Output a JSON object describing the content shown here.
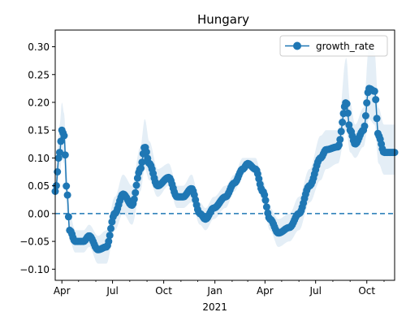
{
  "chart_data": {
    "type": "line",
    "title": "Hungary",
    "xlabel": "",
    "ylabel": "",
    "ylim": [
      -0.12,
      0.33
    ],
    "xlim": [
      "2020-03-20",
      "2021-11-20"
    ],
    "x_ticks": [
      {
        "date": "2020-04-01",
        "label": "Apr"
      },
      {
        "date": "2020-07-01",
        "label": "Jul"
      },
      {
        "date": "2020-10-01",
        "label": "Oct"
      },
      {
        "date": "2021-01-01",
        "label": "Jan"
      },
      {
        "date": "2021-04-01",
        "label": "Apr"
      },
      {
        "date": "2021-07-01",
        "label": "Jul"
      },
      {
        "date": "2021-10-01",
        "label": "Oct"
      }
    ],
    "x_year_label": "2021",
    "y_ticks": [
      -0.1,
      -0.05,
      0.0,
      0.05,
      0.1,
      0.15,
      0.2,
      0.25,
      0.3
    ],
    "y_tick_labels": [
      "−0.10",
      "−0.05",
      "0.00",
      "0.05",
      "0.10",
      "0.15",
      "0.20",
      "0.25",
      "0.30"
    ],
    "legend": {
      "position": "top-right"
    },
    "reference_line": {
      "y": 0.0,
      "style": "dashed"
    },
    "series": [
      {
        "name": "growth_rate",
        "color": "#1f77b4",
        "band_color": "#1f77b4",
        "marker": "circle",
        "points": [
          {
            "x": "2020-03-20",
            "y": 0.04,
            "lo": 0.03,
            "hi": 0.07
          },
          {
            "x": "2020-03-28",
            "y": 0.11,
            "lo": 0.07,
            "hi": 0.16
          },
          {
            "x": "2020-04-01",
            "y": 0.15,
            "lo": 0.1,
            "hi": 0.2
          },
          {
            "x": "2020-04-05",
            "y": 0.14,
            "lo": 0.09,
            "hi": 0.18
          },
          {
            "x": "2020-04-10",
            "y": 0.04,
            "lo": 0.0,
            "hi": 0.08
          },
          {
            "x": "2020-04-15",
            "y": -0.03,
            "lo": -0.05,
            "hi": 0.0
          },
          {
            "x": "2020-04-25",
            "y": -0.05,
            "lo": -0.07,
            "hi": -0.03
          },
          {
            "x": "2020-05-10",
            "y": -0.05,
            "lo": -0.07,
            "hi": -0.03
          },
          {
            "x": "2020-05-20",
            "y": -0.04,
            "lo": -0.06,
            "hi": -0.02
          },
          {
            "x": "2020-06-05",
            "y": -0.065,
            "lo": -0.09,
            "hi": -0.04
          },
          {
            "x": "2020-06-20",
            "y": -0.06,
            "lo": -0.09,
            "hi": -0.03
          },
          {
            "x": "2020-07-05",
            "y": 0.0,
            "lo": -0.03,
            "hi": 0.03
          },
          {
            "x": "2020-07-20",
            "y": 0.035,
            "lo": 0.0,
            "hi": 0.07
          },
          {
            "x": "2020-08-05",
            "y": 0.015,
            "lo": -0.02,
            "hi": 0.05
          },
          {
            "x": "2020-08-20",
            "y": 0.08,
            "lo": 0.04,
            "hi": 0.12
          },
          {
            "x": "2020-08-28",
            "y": 0.12,
            "lo": 0.08,
            "hi": 0.17
          },
          {
            "x": "2020-09-05",
            "y": 0.09,
            "lo": 0.06,
            "hi": 0.13
          },
          {
            "x": "2020-09-20",
            "y": 0.05,
            "lo": 0.03,
            "hi": 0.08
          },
          {
            "x": "2020-10-10",
            "y": 0.065,
            "lo": 0.05,
            "hi": 0.09
          },
          {
            "x": "2020-10-25",
            "y": 0.03,
            "lo": 0.01,
            "hi": 0.05
          },
          {
            "x": "2020-11-05",
            "y": 0.03,
            "lo": 0.01,
            "hi": 0.05
          },
          {
            "x": "2020-11-20",
            "y": 0.045,
            "lo": 0.02,
            "hi": 0.07
          },
          {
            "x": "2020-12-05",
            "y": 0.0,
            "lo": -0.02,
            "hi": 0.02
          },
          {
            "x": "2020-12-15",
            "y": -0.01,
            "lo": -0.03,
            "hi": 0.01
          },
          {
            "x": "2020-12-30",
            "y": 0.01,
            "lo": -0.01,
            "hi": 0.03
          },
          {
            "x": "2021-01-20",
            "y": 0.03,
            "lo": 0.01,
            "hi": 0.05
          },
          {
            "x": "2021-02-05",
            "y": 0.055,
            "lo": 0.04,
            "hi": 0.07
          },
          {
            "x": "2021-02-20",
            "y": 0.08,
            "lo": 0.07,
            "hi": 0.1
          },
          {
            "x": "2021-03-01",
            "y": 0.09,
            "lo": 0.08,
            "hi": 0.1
          },
          {
            "x": "2021-03-15",
            "y": 0.08,
            "lo": 0.07,
            "hi": 0.1
          },
          {
            "x": "2021-03-28",
            "y": 0.04,
            "lo": 0.02,
            "hi": 0.06
          },
          {
            "x": "2021-04-10",
            "y": -0.01,
            "lo": -0.03,
            "hi": 0.01
          },
          {
            "x": "2021-04-25",
            "y": -0.035,
            "lo": -0.06,
            "hi": -0.01
          },
          {
            "x": "2021-05-15",
            "y": -0.025,
            "lo": -0.05,
            "hi": 0.0
          },
          {
            "x": "2021-06-01",
            "y": 0.0,
            "lo": -0.03,
            "hi": 0.03
          },
          {
            "x": "2021-06-20",
            "y": 0.05,
            "lo": 0.02,
            "hi": 0.08
          },
          {
            "x": "2021-07-10",
            "y": 0.1,
            "lo": 0.06,
            "hi": 0.14
          },
          {
            "x": "2021-07-20",
            "y": 0.115,
            "lo": 0.08,
            "hi": 0.15
          },
          {
            "x": "2021-08-10",
            "y": 0.12,
            "lo": 0.09,
            "hi": 0.15
          },
          {
            "x": "2021-08-25",
            "y": 0.2,
            "lo": 0.15,
            "hi": 0.28
          },
          {
            "x": "2021-09-01",
            "y": 0.15,
            "lo": 0.11,
            "hi": 0.2
          },
          {
            "x": "2021-09-10",
            "y": 0.125,
            "lo": 0.1,
            "hi": 0.16
          },
          {
            "x": "2021-09-25",
            "y": 0.15,
            "lo": 0.12,
            "hi": 0.19
          },
          {
            "x": "2021-10-05",
            "y": 0.225,
            "lo": 0.17,
            "hi": 0.3
          },
          {
            "x": "2021-10-15",
            "y": 0.22,
            "lo": 0.16,
            "hi": 0.29
          },
          {
            "x": "2021-10-22",
            "y": 0.14,
            "lo": 0.09,
            "hi": 0.19
          },
          {
            "x": "2021-11-01",
            "y": 0.11,
            "lo": 0.07,
            "hi": 0.16
          },
          {
            "x": "2021-11-20",
            "y": 0.11,
            "lo": 0.07,
            "hi": 0.16
          }
        ]
      }
    ]
  }
}
